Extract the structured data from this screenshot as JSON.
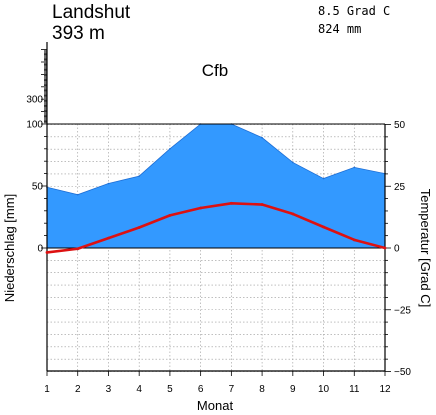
{
  "header": {
    "station": "Landshut",
    "elevation": "393 m",
    "mean_temperature": "8.5 Grad C",
    "annual_precipitation": "824 mm",
    "climate_class": "Cfb"
  },
  "chart_data": {
    "type": "area",
    "categories": [
      "1",
      "2",
      "3",
      "4",
      "5",
      "6",
      "7",
      "8",
      "9",
      "10",
      "11",
      "12"
    ],
    "xlabel": "Monat",
    "ylabel_left": "Niederschlag [mm]",
    "ylabel_right": "Temperatur [Grad C]",
    "precip_ticks": [
      {
        "value": 0,
        "label": "0"
      },
      {
        "value": 50,
        "label": "50"
      },
      {
        "value": 100,
        "label": "100"
      },
      {
        "value": 300,
        "label": "300"
      }
    ],
    "precip_scale": "linear 0-100, compressed above 100",
    "temp_ticks": [
      {
        "value": -50,
        "label": "−50"
      },
      {
        "value": -25,
        "label": "−25"
      },
      {
        "value": 0,
        "label": "0"
      },
      {
        "value": 25,
        "label": "25"
      },
      {
        "value": 50,
        "label": "50"
      }
    ],
    "temp_range": [
      -50,
      50
    ],
    "grid": true,
    "series": [
      {
        "kind": "precipitation",
        "color": "#3399ff",
        "values": [
          49,
          43,
          52,
          58,
          80,
          100,
          100,
          89,
          69,
          56,
          65,
          60
        ]
      },
      {
        "kind": "temperature",
        "color": "#dd1111",
        "values": [
          -1.8,
          -0.3,
          4,
          8.3,
          13.2,
          16.2,
          18.1,
          17.6,
          13.8,
          8.5,
          3.3,
          0
        ]
      }
    ]
  }
}
